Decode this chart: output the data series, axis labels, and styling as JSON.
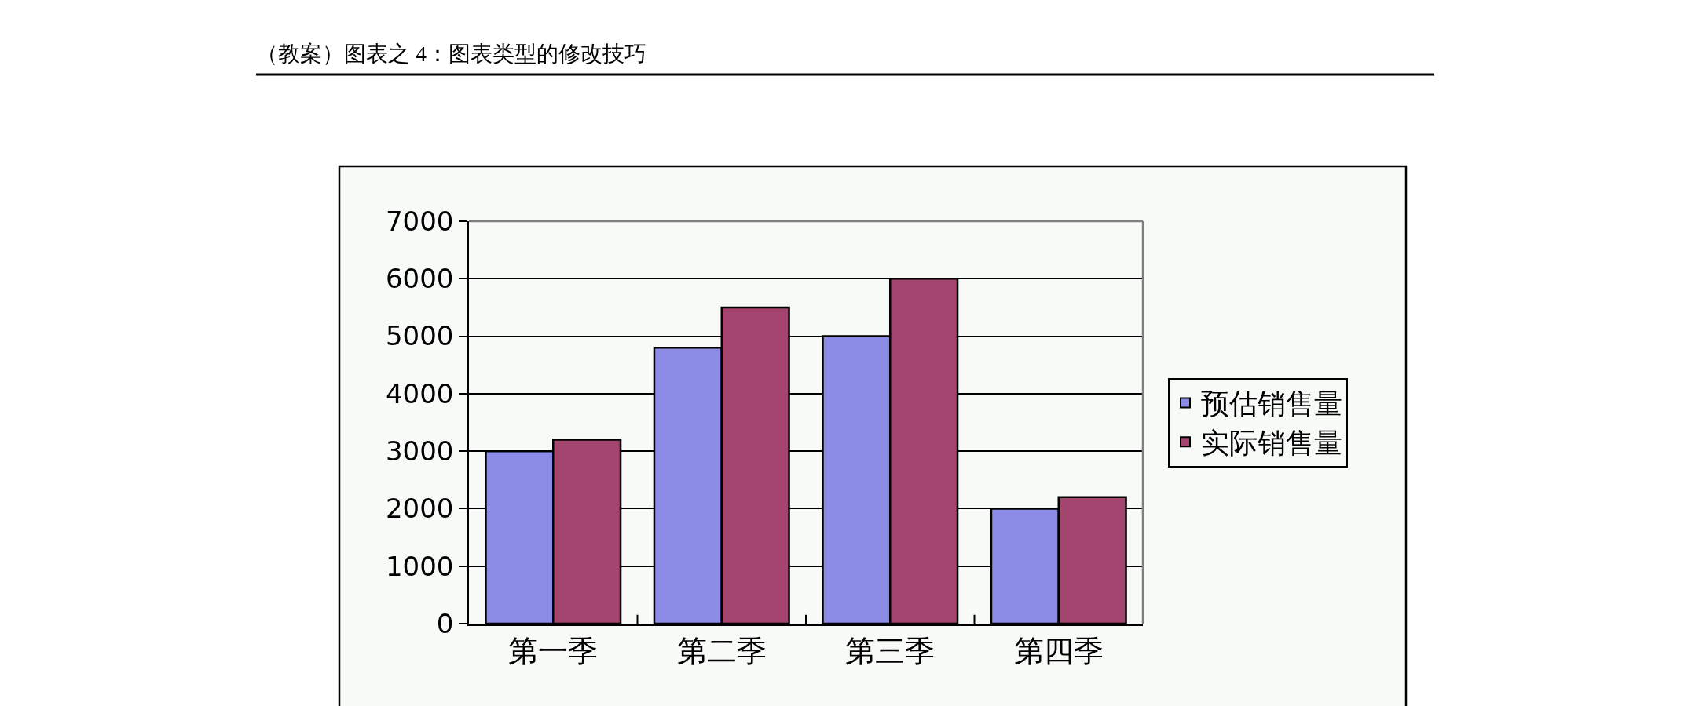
{
  "chart_data": {
    "type": "bar",
    "title": "（教案）图表之 4：图表类型的修改技巧",
    "categories": [
      "第一季",
      "第二季",
      "第三季",
      "第四季"
    ],
    "series": [
      {
        "name": "预估销售量",
        "color": "#8c8ce6",
        "values": [
          3000,
          4800,
          5000,
          2000
        ]
      },
      {
        "name": "实际销售量",
        "color": "#a3456f",
        "values": [
          3200,
          5500,
          6000,
          2200
        ]
      }
    ],
    "ylim": [
      0,
      7000
    ],
    "yticks": [
      0,
      1000,
      2000,
      3000,
      4000,
      5000,
      6000,
      7000
    ],
    "grid": "y",
    "legend": "right"
  }
}
